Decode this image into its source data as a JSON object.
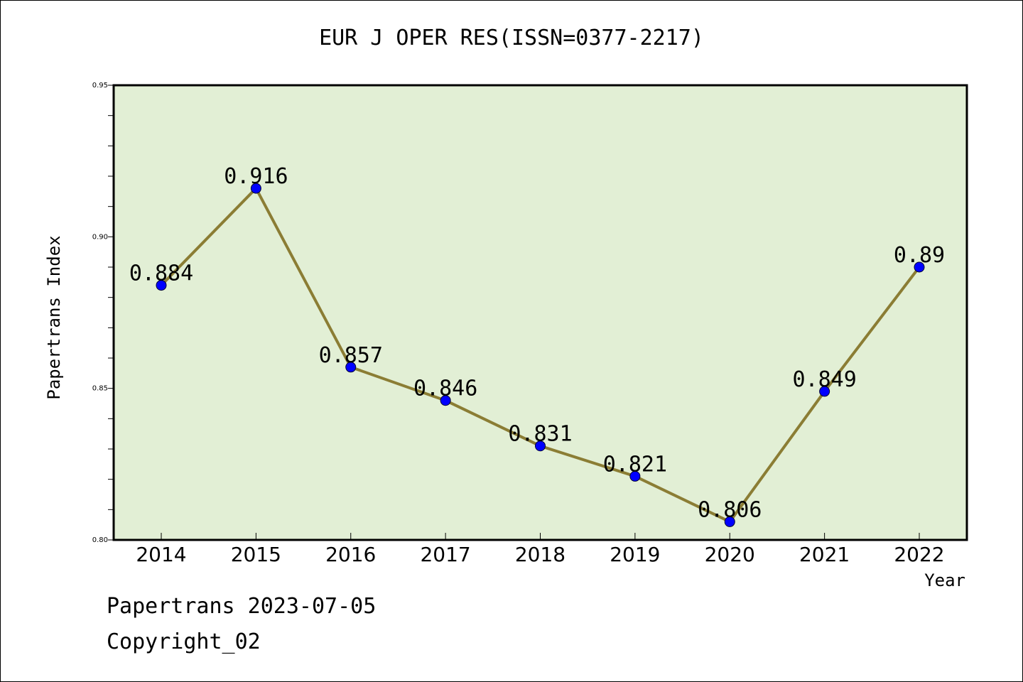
{
  "title": "EUR J OPER RES(ISSN=0377-2217)",
  "footer": {
    "line1": "Papertrans 2023-07-05",
    "line2": "Copyright_02"
  },
  "colors": {
    "plot_background": "#e2efd5",
    "line": "#8b7d34",
    "marker": "#0000ff"
  },
  "chart_data": {
    "type": "line",
    "title": "EUR J OPER RES(ISSN=0377-2217)",
    "xlabel": "Year",
    "ylabel": "Papertrans Index",
    "x": [
      "2014",
      "2015",
      "2016",
      "2017",
      "2018",
      "2019",
      "2020",
      "2021",
      "2022"
    ],
    "series": [
      {
        "values": [
          0.884,
          0.916,
          0.857,
          0.846,
          0.831,
          0.821,
          0.806,
          0.849,
          0.89
        ],
        "labels": [
          "0.884",
          "0.916",
          "0.857",
          "0.846",
          "0.831",
          "0.821",
          "0.806",
          "0.849",
          "0.89"
        ]
      }
    ],
    "ylim": [
      0.8,
      0.95
    ],
    "yticks": [
      "0.80",
      "0.85",
      "0.90",
      "0.95"
    ],
    "ytick_values": [
      0.8,
      0.85,
      0.9,
      0.95
    ],
    "grid": false,
    "legend": "none"
  }
}
